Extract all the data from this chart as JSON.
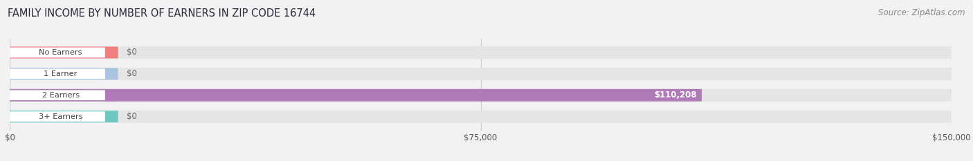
{
  "title": "FAMILY INCOME BY NUMBER OF EARNERS IN ZIP CODE 16744",
  "source": "Source: ZipAtlas.com",
  "categories": [
    "No Earners",
    "1 Earner",
    "2 Earners",
    "3+ Earners"
  ],
  "values": [
    0,
    0,
    110208,
    0
  ],
  "bar_colors": [
    "#f08080",
    "#a8c4e0",
    "#b07ab8",
    "#6dc8c0"
  ],
  "value_labels": [
    "$0",
    "$0",
    "$110,208",
    "$0"
  ],
  "xlim": [
    0,
    150000
  ],
  "xticks": [
    0,
    75000,
    150000
  ],
  "xtick_labels": [
    "$0",
    "$75,000",
    "$150,000"
  ],
  "background_color": "#f2f2f2",
  "bar_background_color": "#e5e5e5",
  "title_fontsize": 10.5,
  "source_fontsize": 8.5,
  "bar_height": 0.58,
  "figsize": [
    14.06,
    2.33
  ]
}
